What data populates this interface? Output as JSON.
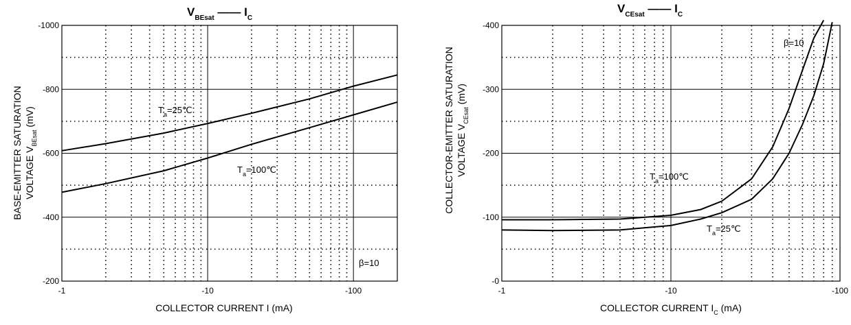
{
  "chart_data": [
    {
      "type": "line",
      "title_main": "V",
      "title_sub": "BEsat",
      "title_dash": "——",
      "title_rhs_main": "I",
      "title_rhs_sub": "C",
      "xlabel": "COLLECTOR CURRENT I (mA)",
      "ylabel_line1": "BASE-EMITTER SATURATION",
      "ylabel_line2": "VOLTAGE",
      "ylabel_sym": "V",
      "ylabel_sym_sub": "BEsat",
      "ylabel_unit": "(mV)",
      "x_scale": "log",
      "xlim": [
        -1,
        -200
      ],
      "ylim": [
        -200,
        -1000
      ],
      "x_ticks": [
        "-1",
        "-10",
        "-100"
      ],
      "y_ticks": [
        "-1000",
        "-800",
        "-600",
        "-400",
        "-200"
      ],
      "grid": true,
      "annotation": "β=10",
      "series": [
        {
          "name": "Ta=25℃",
          "label_main": "T",
          "label_sub": "a",
          "label_rest": "=25℃",
          "x": [
            -1,
            -2,
            -5,
            -10,
            -20,
            -50,
            -100,
            -200
          ],
          "y": [
            -608,
            -630,
            -663,
            -693,
            -725,
            -770,
            -810,
            -845
          ]
        },
        {
          "name": "Ta=100℃",
          "label_main": "T",
          "label_sub": "a",
          "label_rest": "=100℃",
          "x": [
            -1,
            -2,
            -5,
            -10,
            -20,
            -50,
            -100,
            -200
          ],
          "y": [
            -478,
            -505,
            -545,
            -585,
            -628,
            -680,
            -720,
            -760
          ]
        }
      ]
    },
    {
      "type": "line",
      "title_main": "V",
      "title_sub": "CEsat",
      "title_dash": "——",
      "title_rhs_main": "I",
      "title_rhs_sub": "C",
      "xlabel_main": "COLLECTOR CURRENT",
      "xlabel_sym": "I",
      "xlabel_sym_sub": "C",
      "xlabel_unit": "(mA)",
      "ylabel_line1": "COLLECTOR-EMITTER SATURATION",
      "ylabel_line2": "VOLTAGE",
      "ylabel_sym": "V",
      "ylabel_sym_sub": "CEsat",
      "ylabel_unit": "(mV)",
      "x_scale": "log",
      "xlim": [
        -1,
        -100
      ],
      "ylim": [
        0,
        -400
      ],
      "x_ticks": [
        "-1",
        "-10",
        "-100"
      ],
      "y_ticks": [
        "-400",
        "-300",
        "-200",
        "-100",
        "-0"
      ],
      "grid": true,
      "annotation": "β=10",
      "series": [
        {
          "name": "Ta=100℃",
          "label_main": "T",
          "label_sub": "a",
          "label_rest": "=100℃",
          "x": [
            -1,
            -2,
            -5,
            -10,
            -15,
            -20,
            -30,
            -40,
            -50,
            -60,
            -70,
            -80
          ],
          "y": [
            -96,
            -96,
            -97,
            -103,
            -112,
            -125,
            -160,
            -210,
            -270,
            -330,
            -380,
            -408
          ]
        },
        {
          "name": "Ta=25℃",
          "label_main": "T",
          "label_sub": "a",
          "label_rest": "=25℃",
          "x": [
            -1,
            -2,
            -5,
            -10,
            -15,
            -20,
            -30,
            -40,
            -50,
            -60,
            -70,
            -80,
            -90
          ],
          "y": [
            -80,
            -79,
            -80,
            -87,
            -97,
            -107,
            -128,
            -160,
            -200,
            -245,
            -290,
            -340,
            -405
          ]
        }
      ]
    }
  ]
}
